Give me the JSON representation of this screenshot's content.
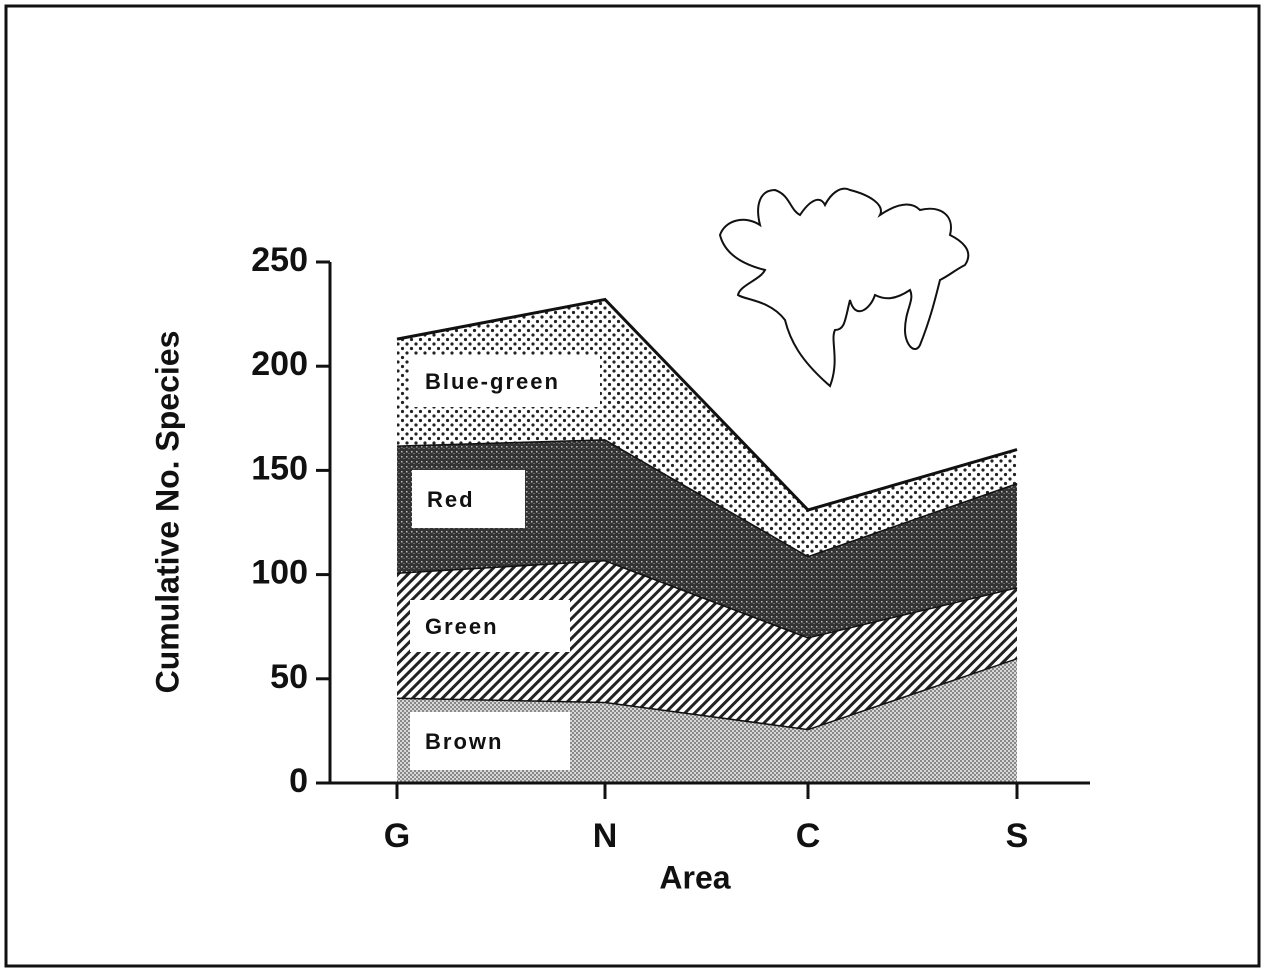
{
  "chart_data": {
    "type": "stacked-area",
    "x_label": "Area",
    "y_label": "Cumulative No. Species",
    "categories": [
      "G",
      "N",
      "C",
      "S"
    ],
    "series": [
      {
        "name": "Brown",
        "values": [
          41,
          39,
          26,
          60
        ]
      },
      {
        "name": "Green",
        "values": [
          60,
          68,
          44,
          34
        ]
      },
      {
        "name": "Red",
        "values": [
          61,
          58,
          39,
          50
        ]
      },
      {
        "name": "Blue-green",
        "values": [
          51,
          67,
          22,
          16
        ]
      }
    ],
    "ylim": [
      0,
      250
    ],
    "yticks": [
      0,
      50,
      100,
      150,
      200,
      250
    ]
  }
}
